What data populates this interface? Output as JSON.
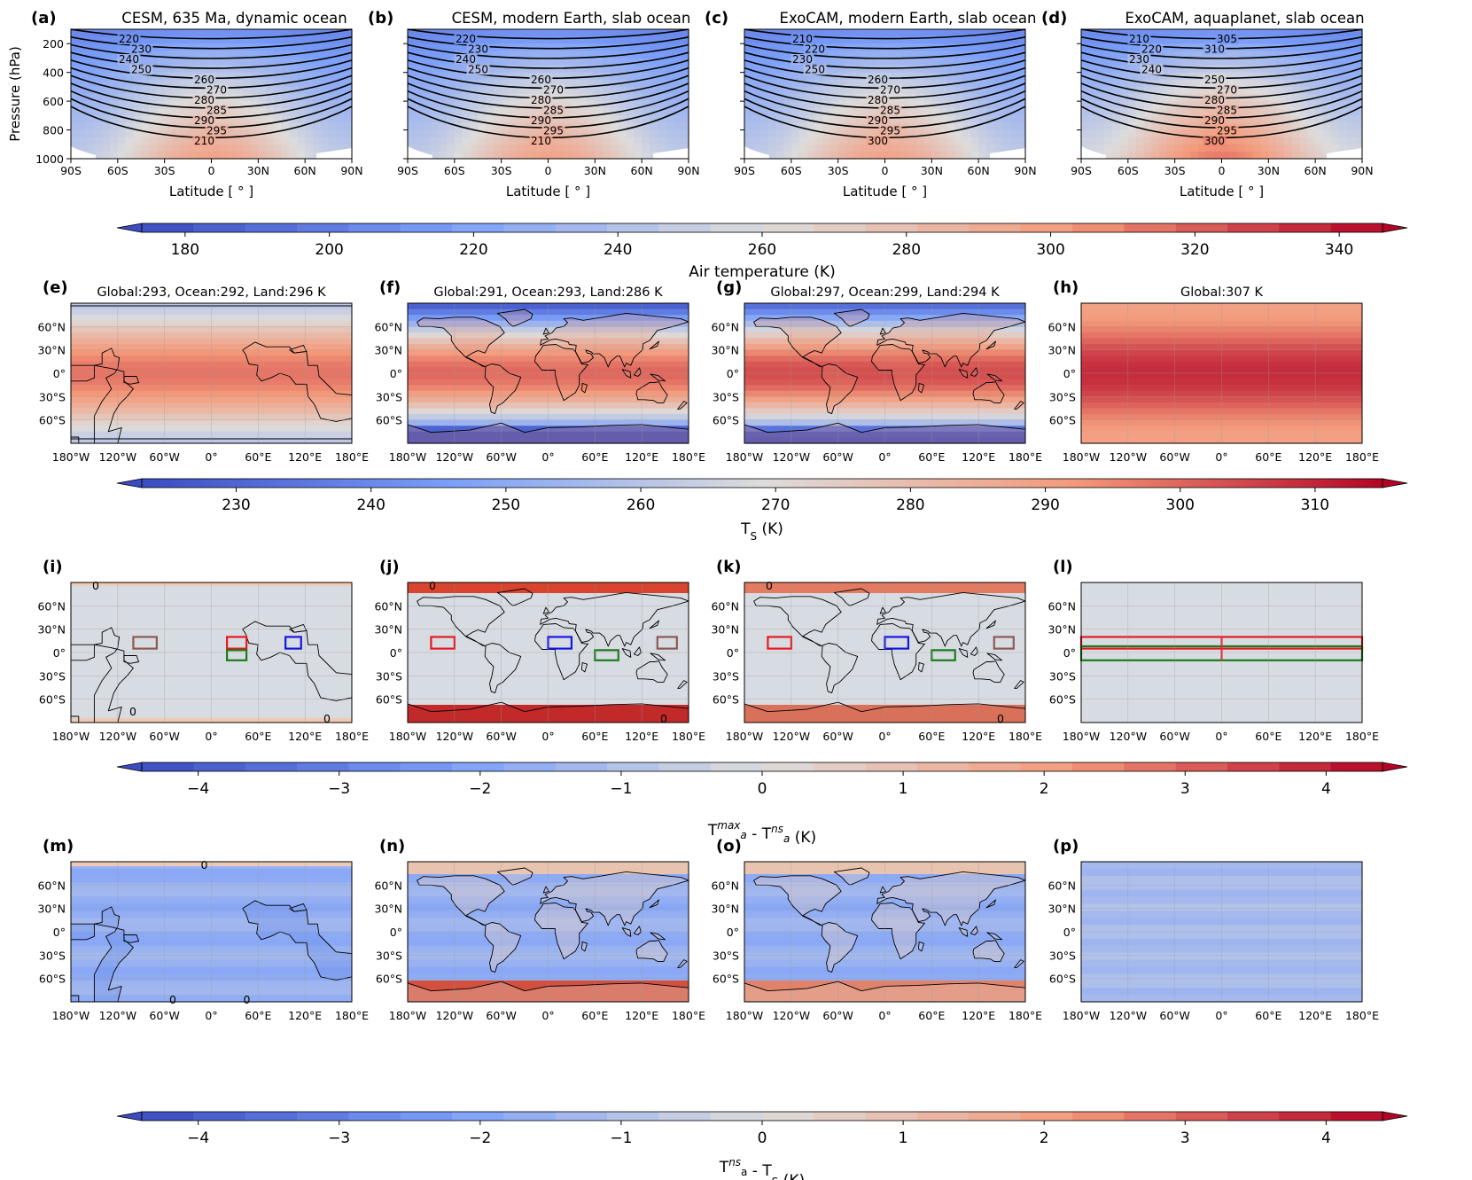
{
  "row1": {
    "panels": [
      {
        "label": "(a)",
        "title": "CESM, 635 Ma, dynamic ocean",
        "contours": [
          "220",
          "230",
          "240",
          "250",
          "260",
          "270",
          "280",
          "285",
          "290",
          "295",
          "210"
        ]
      },
      {
        "label": "(b)",
        "title": "CESM, modern Earth, slab ocean",
        "contours": [
          "220",
          "230",
          "240",
          "250",
          "260",
          "270",
          "280",
          "285",
          "290",
          "295",
          "210"
        ]
      },
      {
        "label": "(c)",
        "title": "ExoCAM, modern Earth, slab ocean",
        "contours": [
          "210",
          "220",
          "230",
          "250",
          "260",
          "270",
          "280",
          "285",
          "290",
          "295",
          "300"
        ]
      },
      {
        "label": "(d)",
        "title": "ExoCAM, aquaplanet, slab ocean",
        "contours": [
          "210",
          "220",
          "230",
          "240",
          "250",
          "270",
          "280",
          "285",
          "290",
          "295",
          "300",
          "305",
          "310"
        ]
      }
    ],
    "y_axis_label": "Pressure (hPa)",
    "y_ticks": [
      "200",
      "400",
      "600",
      "800",
      "1000"
    ],
    "x_ticks": [
      "90S",
      "60S",
      "30S",
      "0",
      "30N",
      "60N",
      "90N"
    ],
    "x_axis_label": "Latitude [ ° ]"
  },
  "colorbar1": {
    "label": "Air temperature (K)",
    "ticks": [
      "180",
      "200",
      "220",
      "240",
      "260",
      "280",
      "300",
      "320",
      "340"
    ]
  },
  "row2": {
    "panels": [
      {
        "label": "(e)",
        "title": "Global:293, Ocean:292, Land:296 K"
      },
      {
        "label": "(f)",
        "title": "Global:291, Ocean:293, Land:286 K"
      },
      {
        "label": "(g)",
        "title": "Global:297, Ocean:299, Land:294 K"
      },
      {
        "label": "(h)",
        "title": "Global:307 K"
      }
    ]
  },
  "colorbar2": {
    "label_main": "T",
    "label_sub": "S",
    "label_unit": " (K)",
    "ticks": [
      "230",
      "240",
      "250",
      "260",
      "270",
      "280",
      "290",
      "300",
      "310"
    ]
  },
  "row3": {
    "panels": [
      {
        "label": "(i)",
        "zero_labels": [
          "0",
          "0",
          "0"
        ]
      },
      {
        "label": "(j)",
        "zero_labels": [
          "0",
          "0"
        ]
      },
      {
        "label": "(k)",
        "zero_labels": [
          "0",
          "0"
        ]
      },
      {
        "label": "(l)",
        "zero_labels": []
      }
    ],
    "box_colors": {
      "red": "#e8191f",
      "blue": "#1515e0",
      "green": "#1a7a1a",
      "brown": "#8b5a50"
    }
  },
  "colorbar3": {
    "label_a": "T",
    "label_a_sup": "max",
    "label_a_sub": "a",
    "label_mid": " - T",
    "label_b_sup": "ns",
    "label_b_sub": "a",
    "label_unit": " (K)",
    "ticks": [
      "−4",
      "−3",
      "−2",
      "−1",
      "0",
      "1",
      "2",
      "3",
      "4"
    ]
  },
  "row4": {
    "panels": [
      {
        "label": "(m)",
        "zero_labels": [
          "0",
          "0",
          "0"
        ]
      },
      {
        "label": "(n)",
        "zero_labels": []
      },
      {
        "label": "(o)",
        "zero_labels": []
      },
      {
        "label": "(p)",
        "zero_labels": []
      }
    ]
  },
  "colorbar4": {
    "label_a": "T",
    "label_a_sup": "ns",
    "label_a_sub": "a",
    "label_mid": " - T",
    "label_b_sub": "S",
    "label_unit": " (K)",
    "ticks": [
      "−4",
      "−3",
      "−2",
      "−1",
      "0",
      "1",
      "2",
      "3",
      "4"
    ]
  },
  "map_axes": {
    "lat_ticks": [
      "60°N",
      "30°N",
      "0°",
      "30°S",
      "60°S"
    ],
    "lon_ticks": [
      "180°W",
      "120°W",
      "60°W",
      "0°",
      "60°E",
      "120°E",
      "180°E"
    ]
  },
  "chart_data": [
    {
      "type": "heatmap",
      "title": "CESM, 635 Ma, dynamic ocean",
      "xlabel": "Latitude [ ° ]",
      "ylabel": "Pressure (hPa)",
      "xlim": [
        -90,
        90
      ],
      "ylim": [
        1000,
        100
      ],
      "contour_levels": [
        210,
        220,
        230,
        240,
        250,
        260,
        270,
        280,
        285,
        290,
        295
      ]
    },
    {
      "type": "heatmap",
      "title": "CESM, modern Earth, slab ocean",
      "xlabel": "Latitude [ ° ]",
      "xlim": [
        -90,
        90
      ],
      "ylim": [
        1000,
        100
      ],
      "contour_levels": [
        210,
        220,
        230,
        240,
        250,
        260,
        270,
        280,
        285,
        290,
        295
      ]
    },
    {
      "type": "heatmap",
      "title": "ExoCAM, modern Earth, slab ocean",
      "xlabel": "Latitude [ ° ]",
      "xlim": [
        -90,
        90
      ],
      "ylim": [
        1000,
        100
      ],
      "contour_levels": [
        210,
        220,
        230,
        250,
        260,
        270,
        280,
        285,
        290,
        295,
        300
      ]
    },
    {
      "type": "heatmap",
      "title": "ExoCAM, aquaplanet, slab ocean",
      "xlabel": "Latitude [ ° ]",
      "xlim": [
        -90,
        90
      ],
      "ylim": [
        1000,
        100
      ],
      "contour_levels": [
        210,
        220,
        230,
        240,
        250,
        270,
        280,
        285,
        290,
        295,
        300,
        305,
        310
      ]
    },
    {
      "type": "heatmap",
      "title": "Global:293, Ocean:292, Land:296 K",
      "xlim": [
        -180,
        180
      ],
      "ylim": [
        -90,
        90
      ]
    },
    {
      "type": "heatmap",
      "title": "Global:291, Ocean:293, Land:286 K",
      "xlim": [
        -180,
        180
      ],
      "ylim": [
        -90,
        90
      ]
    },
    {
      "type": "heatmap",
      "title": "Global:297, Ocean:299, Land:294 K",
      "xlim": [
        -180,
        180
      ],
      "ylim": [
        -90,
        90
      ]
    },
    {
      "type": "heatmap",
      "title": "Global:307 K",
      "xlim": [
        -180,
        180
      ],
      "ylim": [
        -90,
        90
      ]
    },
    {
      "type": "heatmap",
      "title": "(i)-(l) Ta_max - Ta_ns",
      "range": [
        -4,
        4
      ]
    },
    {
      "type": "heatmap",
      "title": "(m)-(p) Ta_ns - Ts",
      "range": [
        -4,
        4
      ]
    }
  ]
}
